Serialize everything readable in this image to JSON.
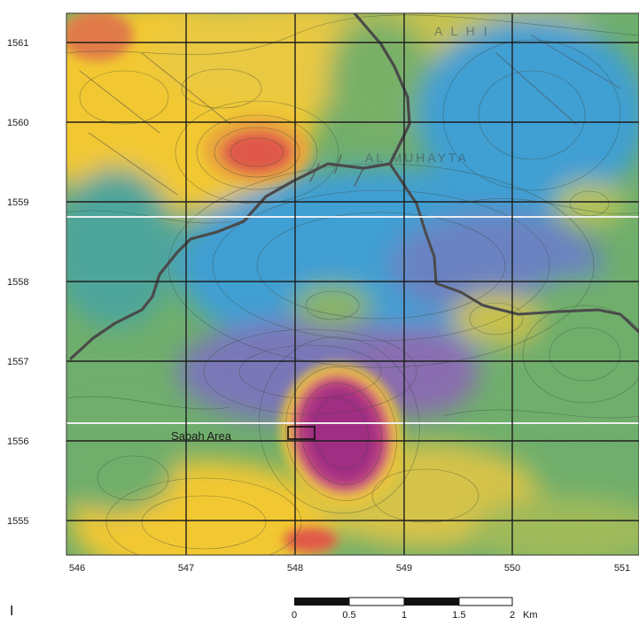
{
  "map": {
    "x_ticks": [
      "546",
      "547",
      "548",
      "549",
      "550",
      "551"
    ],
    "y_ticks": [
      "1561",
      "1560",
      "1559",
      "1558",
      "1557",
      "1556",
      "1555"
    ],
    "labels": {
      "sabah_area": "Sabah Area",
      "faint_north": "A L H I",
      "faint_center": "AL MUHAYTA"
    }
  },
  "scale_bar": {
    "ticks": [
      "0",
      "0.5",
      "1",
      "1.5",
      "2"
    ],
    "unit": "Km"
  },
  "panel_label": "I",
  "colors": {
    "yellow": "#f2c832",
    "green_yellow": "#b9c453",
    "green": "#79b067",
    "teal": "#4aa3a4",
    "blue": "#3f9fd3",
    "purple": "#7775b5",
    "magenta": "#a02e83",
    "red": "#e0584a",
    "road": "#4a4a4a",
    "grid": "#1e1e1e"
  }
}
